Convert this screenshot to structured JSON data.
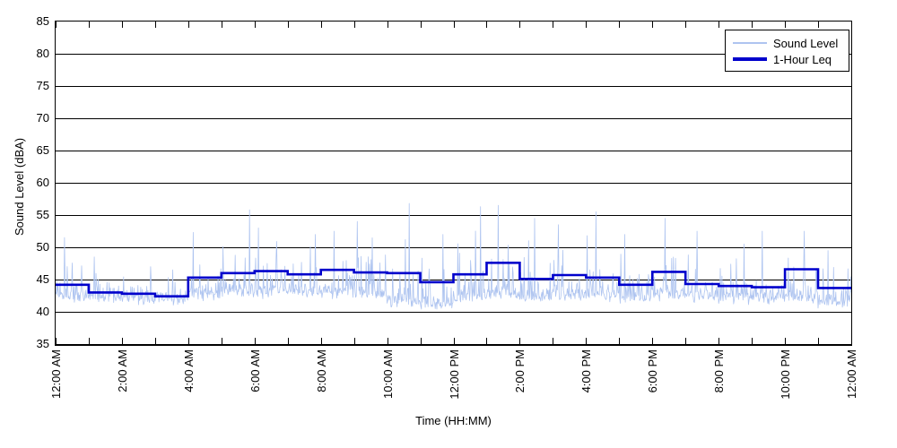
{
  "chart_data": {
    "type": "line",
    "title": "",
    "xlabel": "Time (HH:MM)",
    "ylabel": "Sound Level (dBA)",
    "ylim": [
      35,
      85
    ],
    "ytick_step": 5,
    "ytick_labels": [
      "85",
      "80",
      "75",
      "70",
      "65",
      "60",
      "55",
      "50",
      "45",
      "40",
      "35"
    ],
    "xlim_hours": [
      0,
      24
    ],
    "xtick_labels": [
      "12:00 AM",
      "2:00 AM",
      "4:00 AM",
      "6:00 AM",
      "8:00 AM",
      "10:00 AM",
      "12:00 PM",
      "2:00 PM",
      "4:00 PM",
      "6:00 PM",
      "8:00 PM",
      "10:00 PM",
      "12:00 AM"
    ],
    "xtick_label_interval_hours": 2,
    "minor_xtick_interval_hours": 1,
    "grid": "horizontal-solid-black",
    "legend_position": "top-right",
    "axis_color": "#000000",
    "plot_bg": "#ffffff",
    "series": [
      {
        "name": "Sound Level",
        "color": "#aec4f0",
        "type": "noisy-1-minute-trace",
        "description": "measured sound level fluctuating around a 41-45 dBA base with frequent short spikes",
        "hourly_envelope": [
          {
            "hour": "12 AM",
            "floor": 41.8,
            "typical": 44.0,
            "peak": 51.5
          },
          {
            "hour": "1 AM",
            "floor": 41.5,
            "typical": 43.5,
            "peak": 48.5
          },
          {
            "hour": "2 AM",
            "floor": 41.3,
            "typical": 43.0,
            "peak": 47.0
          },
          {
            "hour": "3 AM",
            "floor": 41.2,
            "typical": 42.5,
            "peak": 46.5
          },
          {
            "hour": "4 AM",
            "floor": 42.0,
            "typical": 44.5,
            "peak": 52.3
          },
          {
            "hour": "5 AM",
            "floor": 42.3,
            "typical": 45.0,
            "peak": 55.8
          },
          {
            "hour": "6 AM",
            "floor": 42.4,
            "typical": 45.3,
            "peak": 53.0
          },
          {
            "hour": "7 AM",
            "floor": 42.4,
            "typical": 45.2,
            "peak": 52.0
          },
          {
            "hour": "8 AM",
            "floor": 42.4,
            "typical": 45.4,
            "peak": 52.5
          },
          {
            "hour": "9 AM",
            "floor": 42.0,
            "typical": 45.0,
            "peak": 54.0
          },
          {
            "hour": "10 AM",
            "floor": 40.8,
            "typical": 44.5,
            "peak": 56.8
          },
          {
            "hour": "11 AM",
            "floor": 40.4,
            "typical": 43.5,
            "peak": 52.0
          },
          {
            "hour": "12 PM",
            "floor": 41.5,
            "typical": 44.5,
            "peak": 56.3
          },
          {
            "hour": "1 PM",
            "floor": 42.0,
            "typical": 45.0,
            "peak": 56.5
          },
          {
            "hour": "2 PM",
            "floor": 41.5,
            "typical": 44.0,
            "peak": 54.5
          },
          {
            "hour": "3 PM",
            "floor": 41.8,
            "typical": 44.3,
            "peak": 53.5
          },
          {
            "hour": "4 PM",
            "floor": 41.8,
            "typical": 44.3,
            "peak": 55.5
          },
          {
            "hour": "5 PM",
            "floor": 41.5,
            "typical": 43.8,
            "peak": 52.0
          },
          {
            "hour": "6 PM",
            "floor": 42.0,
            "typical": 44.5,
            "peak": 54.5
          },
          {
            "hour": "7 PM",
            "floor": 41.8,
            "typical": 44.0,
            "peak": 52.5
          },
          {
            "hour": "8 PM",
            "floor": 41.5,
            "typical": 43.5,
            "peak": 50.5
          },
          {
            "hour": "9 PM",
            "floor": 41.3,
            "typical": 43.3,
            "peak": 52.5
          },
          {
            "hour": "10 PM",
            "floor": 41.5,
            "typical": 44.0,
            "peak": 52.5
          },
          {
            "hour": "11 PM",
            "floor": 40.8,
            "typical": 43.0,
            "peak": 49.5
          }
        ]
      },
      {
        "name": "1-Hour Leq",
        "color": "#0000cc",
        "type": "step-hourly",
        "hour_start_labels": [
          "12 AM",
          "1 AM",
          "2 AM",
          "3 AM",
          "4 AM",
          "5 AM",
          "6 AM",
          "7 AM",
          "8 AM",
          "9 AM",
          "10 AM",
          "11 AM",
          "12 PM",
          "1 PM",
          "2 PM",
          "3 PM",
          "4 PM",
          "5 PM",
          "6 PM",
          "7 PM",
          "8 PM",
          "9 PM",
          "10 PM",
          "11 PM"
        ],
        "values": [
          44.2,
          43.0,
          42.8,
          42.4,
          45.3,
          46.0,
          46.3,
          45.8,
          46.5,
          46.1,
          46.0,
          44.6,
          45.8,
          47.6,
          45.1,
          45.7,
          45.3,
          44.2,
          46.2,
          44.3,
          44.0,
          43.8,
          46.6,
          43.7
        ]
      }
    ],
    "legend": {
      "entries": [
        "Sound Level",
        "1-Hour Leq"
      ]
    }
  }
}
